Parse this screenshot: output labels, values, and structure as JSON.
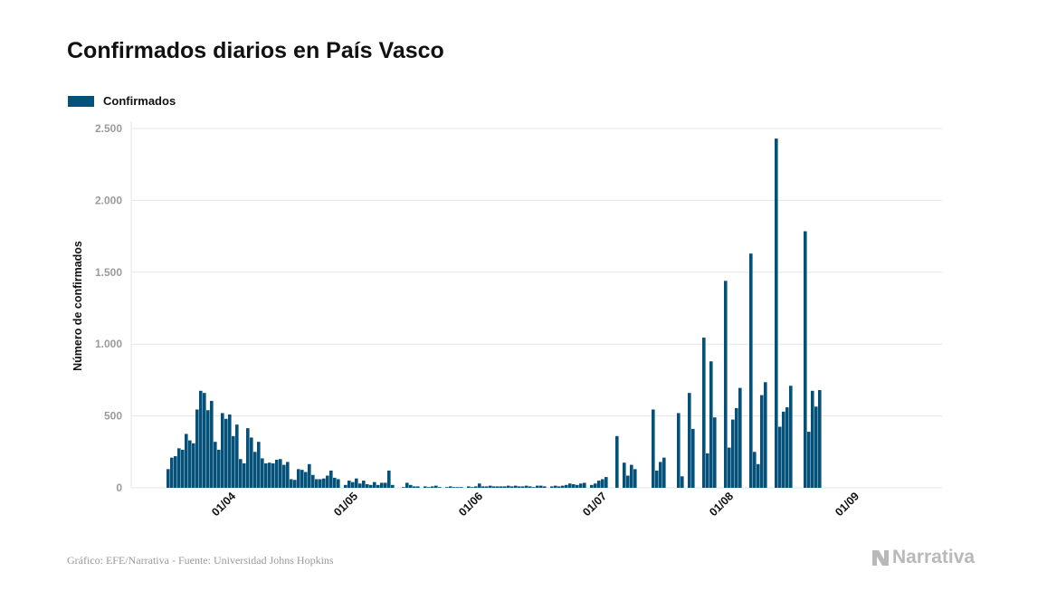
{
  "chart_data": {
    "type": "bar",
    "title": "Confirmados diarios en País Vasco",
    "ylabel": "Número de confirmados",
    "xlabel": "",
    "ylim": [
      0,
      2500
    ],
    "yticks": [
      0,
      500,
      1000,
      1500,
      2000,
      2500
    ],
    "ytick_labels": [
      "0",
      "500",
      "1.000",
      "1.500",
      "2.000",
      "2.500"
    ],
    "xtick_labels": [
      "01/04",
      "01/05",
      "01/06",
      "01/07",
      "01/08",
      "01/09"
    ],
    "grid": true,
    "legend_placement": "top-left",
    "color": "#04517a",
    "series": [
      {
        "name": "Confirmados",
        "values": [
          130,
          210,
          220,
          275,
          265,
          375,
          330,
          310,
          545,
          675,
          660,
          540,
          605,
          320,
          265,
          520,
          480,
          510,
          360,
          440,
          200,
          170,
          415,
          350,
          250,
          320,
          205,
          170,
          175,
          170,
          195,
          200,
          160,
          180,
          60,
          55,
          130,
          125,
          110,
          165,
          90,
          60,
          60,
          65,
          85,
          120,
          70,
          60,
          0,
          20,
          50,
          40,
          65,
          30,
          50,
          25,
          20,
          40,
          20,
          35,
          35,
          120,
          20,
          0,
          0,
          5,
          35,
          20,
          10,
          10,
          0,
          10,
          5,
          10,
          15,
          5,
          0,
          5,
          10,
          5,
          5,
          5,
          0,
          10,
          5,
          10,
          30,
          10,
          10,
          15,
          10,
          10,
          10,
          10,
          15,
          10,
          15,
          10,
          10,
          15,
          10,
          5,
          15,
          15,
          10,
          0,
          10,
          15,
          10,
          15,
          20,
          30,
          25,
          20,
          30,
          35,
          0,
          20,
          30,
          50,
          60,
          75,
          0,
          0,
          360,
          0,
          175,
          85,
          160,
          130,
          0,
          0,
          0,
          0,
          545,
          120,
          180,
          210,
          0,
          0,
          0,
          520,
          80,
          0,
          660,
          410,
          0,
          0,
          1045,
          240,
          880,
          490,
          0,
          0,
          1440,
          280,
          475,
          555,
          695,
          0,
          0,
          1630,
          250,
          165,
          645,
          735,
          0,
          0,
          2430,
          425,
          530,
          560,
          710,
          0,
          0,
          0,
          1785,
          390,
          675,
          565,
          680
        ]
      }
    ]
  },
  "footer": {
    "source": "Gráfico: EFE/Narrativa - Fuente: Universidad Johns Hopkins",
    "logo_text": "Narrativa"
  }
}
